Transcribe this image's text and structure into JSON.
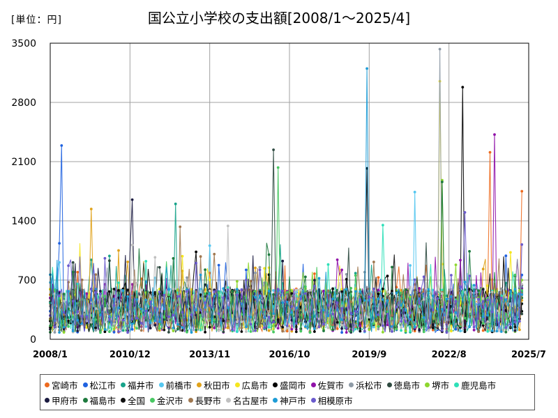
{
  "page": {
    "unit_label": "[単位：円]",
    "title": "国公立小学校の支出額[2008/1～2025/4]"
  },
  "chart_data": {
    "type": "line",
    "title": "国公立小学校の支出額[2008/1～2025/4]",
    "unit": "[単位：円]",
    "xlabel": "",
    "ylabel": "",
    "x_range": [
      "2008/1",
      "2025/7"
    ],
    "x_ticks": [
      "2008/1",
      "2010/12",
      "2013/11",
      "2016/10",
      "2019/9",
      "2022/8",
      "2025/7"
    ],
    "ylim": [
      0,
      3500
    ],
    "y_ticks": [
      0,
      700,
      1400,
      2100,
      2800,
      3500
    ],
    "grid": true,
    "legend_position": "bottom",
    "series": [
      {
        "name": "宮崎市",
        "color": "#ED6A1E",
        "peak": {
          "x": "2024/2",
          "y": 2210
        },
        "last": {
          "x": "2025/4",
          "y": 1750
        }
      },
      {
        "name": "松江市",
        "color": "#1F62E0",
        "peak": {
          "x": "2008/6",
          "y": 2290
        },
        "last": {
          "x": "2025/4",
          "y": 760
        }
      },
      {
        "name": "福井市",
        "color": "#17A38A",
        "peak": {
          "x": "2012/8",
          "y": 1600
        },
        "last": {
          "x": "2025/4",
          "y": 560
        }
      },
      {
        "name": "前橋市",
        "color": "#55C7F0",
        "peak": {
          "x": "2021/5",
          "y": 1740
        },
        "last": {
          "x": "2025/4",
          "y": 610
        }
      },
      {
        "name": "秋田市",
        "color": "#E0A21A",
        "peak": {
          "x": "2009/7",
          "y": 1540
        },
        "last": {
          "x": "2025/4",
          "y": 460
        }
      },
      {
        "name": "広島市",
        "color": "#F5E61E",
        "peak": {
          "x": "2022/4",
          "y": 3050
        },
        "last": {
          "x": "2025/4",
          "y": 530
        }
      },
      {
        "name": "盛岡市",
        "color": "#000000",
        "peak": {
          "x": "2023/2",
          "y": 2980
        },
        "last": {
          "x": "2025/4",
          "y": 330
        }
      },
      {
        "name": "佐賀市",
        "color": "#9012A8",
        "peak": {
          "x": "2024/4",
          "y": 2420
        },
        "last": {
          "x": "2025/4",
          "y": 600
        }
      },
      {
        "name": "浜松市",
        "color": "#8E9AA6",
        "peak": {
          "x": "2022/4",
          "y": 3430
        },
        "last": {
          "x": "2025/4",
          "y": 520
        }
      },
      {
        "name": "徳島市",
        "color": "#2E4A40",
        "peak": {
          "x": "2016/3",
          "y": 2240
        },
        "last": {
          "x": "2025/4",
          "y": 300
        }
      },
      {
        "name": "堺市",
        "color": "#8ED62E",
        "peak": {
          "x": "2022/5",
          "y": 1880
        },
        "last": {
          "x": "2025/4",
          "y": 700
        }
      },
      {
        "name": "鹿児島市",
        "color": "#2EE0B8",
        "peak": {
          "x": "2020/3",
          "y": 1350
        },
        "last": {
          "x": "2025/4",
          "y": 420
        }
      },
      {
        "name": "甲府市",
        "color": "#1A1A40",
        "peak": {
          "x": "2011/1",
          "y": 1650
        },
        "last": {
          "x": "2025/4",
          "y": 640
        }
      },
      {
        "name": "福島市",
        "color": "#1E7A3E",
        "peak": {
          "x": "2022/5",
          "y": 1860
        },
        "last": {
          "x": "2025/4",
          "y": 490
        }
      },
      {
        "name": "全国",
        "color": "#101010",
        "peak": {
          "x": "2019/8",
          "y": 2020
        },
        "last": {
          "x": "2025/4",
          "y": 420
        }
      },
      {
        "name": "金沢市",
        "color": "#48C862",
        "peak": {
          "x": "2016/5",
          "y": 2030
        },
        "last": {
          "x": "2025/4",
          "y": 580
        }
      },
      {
        "name": "長野市",
        "color": "#A07850",
        "peak": {
          "x": "2012/10",
          "y": 1330
        },
        "last": {
          "x": "2025/4",
          "y": 540
        }
      },
      {
        "name": "名古屋市",
        "color": "#C0C0C0",
        "peak": {
          "x": "2014/7",
          "y": 1340
        },
        "last": {
          "x": "2025/4",
          "y": 650
        }
      },
      {
        "name": "神戸市",
        "color": "#1E9CD6",
        "peak": {
          "x": "2019/8",
          "y": 3200
        },
        "last": {
          "x": "2025/4",
          "y": 530
        }
      },
      {
        "name": "相模原市",
        "color": "#6A5ACD",
        "peak": {
          "x": "2023/3",
          "y": 1500
        },
        "last": {
          "x": "2025/4",
          "y": 1120
        }
      }
    ]
  }
}
